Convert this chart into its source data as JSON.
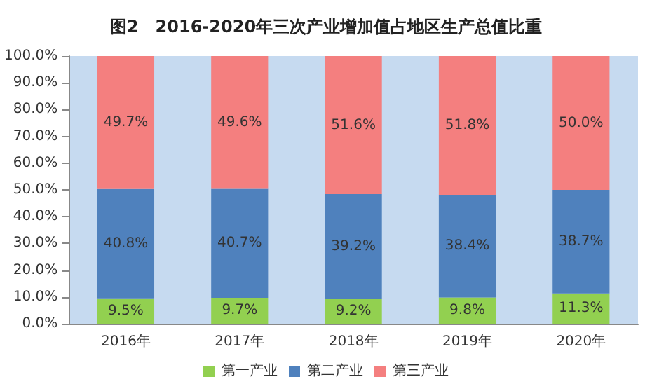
{
  "chart_data": {
    "type": "bar",
    "title": "图2　2016-2020年三次产业增加值占地区生产总值比重",
    "categories": [
      "2016年",
      "2017年",
      "2018年",
      "2019年",
      "2020年"
    ],
    "stacked": true,
    "series": [
      {
        "name": "第一产业",
        "color": "#92d050",
        "values": [
          9.5,
          9.7,
          9.2,
          9.8,
          11.3
        ],
        "value_labels": [
          "9.5%",
          "9.7%",
          "9.2%",
          "9.8%",
          "11.3%"
        ]
      },
      {
        "name": "第二产业",
        "color": "#4f81bd",
        "values": [
          40.8,
          40.7,
          39.2,
          38.4,
          38.7
        ],
        "value_labels": [
          "40.8%",
          "40.7%",
          "39.2%",
          "38.4%",
          "38.7%"
        ]
      },
      {
        "name": "第三产业",
        "color": "#f47f7f",
        "values": [
          49.7,
          49.6,
          51.6,
          51.8,
          50.0
        ],
        "value_labels": [
          "49.7%",
          "49.6%",
          "51.6%",
          "51.8%",
          "50.0%"
        ]
      }
    ],
    "ylim": [
      0,
      100
    ],
    "yticks": [
      {
        "value": 0,
        "label": "0.0%"
      },
      {
        "value": 10,
        "label": "10.0%"
      },
      {
        "value": 20,
        "label": "20.0%"
      },
      {
        "value": 30,
        "label": "30.0%"
      },
      {
        "value": 40,
        "label": "40.0%"
      },
      {
        "value": 50,
        "label": "50.0%"
      },
      {
        "value": 60,
        "label": "60.0%"
      },
      {
        "value": 70,
        "label": "70.0%"
      },
      {
        "value": 80,
        "label": "80.0%"
      },
      {
        "value": 90,
        "label": "90.0%"
      },
      {
        "value": 100,
        "label": "100.0%"
      }
    ],
    "grid": false,
    "legend": "bottom"
  }
}
